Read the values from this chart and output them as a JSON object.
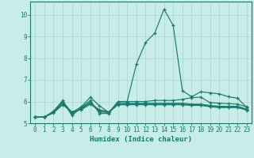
{
  "xlabel": "Humidex (Indice chaleur)",
  "xlim": [
    -0.5,
    23.5
  ],
  "ylim": [
    5.0,
    10.6
  ],
  "yticks": [
    5,
    6,
    7,
    8,
    9,
    10
  ],
  "xticks": [
    0,
    1,
    2,
    3,
    4,
    5,
    6,
    7,
    8,
    9,
    10,
    11,
    12,
    13,
    14,
    15,
    16,
    17,
    18,
    19,
    20,
    21,
    22,
    23
  ],
  "bg_color": "#c8ece8",
  "line_color": "#1a7a6e",
  "grid_color": "#b0d8d4",
  "lines": [
    {
      "x": [
        0,
        1,
        2,
        3,
        4,
        5,
        6,
        7,
        8,
        9,
        10,
        11,
        12,
        13,
        14,
        15,
        16,
        17,
        18,
        19,
        20,
        21,
        22,
        23
      ],
      "y": [
        5.28,
        5.28,
        5.55,
        6.05,
        5.35,
        5.72,
        6.05,
        5.45,
        5.45,
        5.97,
        6.0,
        7.72,
        8.72,
        9.15,
        10.25,
        9.5,
        6.5,
        6.22,
        6.45,
        6.4,
        6.35,
        6.22,
        6.15,
        5.72
      ]
    },
    {
      "x": [
        0,
        1,
        2,
        3,
        4,
        5,
        6,
        7,
        8,
        9,
        10,
        11,
        12,
        13,
        14,
        15,
        16,
        17,
        18,
        19,
        20,
        21,
        22,
        23
      ],
      "y": [
        5.28,
        5.28,
        5.55,
        6.0,
        5.5,
        5.75,
        6.2,
        5.8,
        5.5,
        6.0,
        6.0,
        6.0,
        6.0,
        6.05,
        6.05,
        6.05,
        6.1,
        6.18,
        6.2,
        5.95,
        5.92,
        5.9,
        5.88,
        5.75
      ]
    },
    {
      "x": [
        0,
        1,
        2,
        3,
        4,
        5,
        6,
        7,
        8,
        9,
        10,
        11,
        12,
        13,
        14,
        15,
        16,
        17,
        18,
        19,
        20,
        21,
        22,
        23
      ],
      "y": [
        5.28,
        5.28,
        5.52,
        5.95,
        5.42,
        5.68,
        5.98,
        5.52,
        5.5,
        5.9,
        5.92,
        5.92,
        5.92,
        5.92,
        5.92,
        5.92,
        5.92,
        5.88,
        5.88,
        5.82,
        5.78,
        5.78,
        5.78,
        5.65
      ]
    },
    {
      "x": [
        0,
        1,
        2,
        3,
        4,
        5,
        6,
        7,
        8,
        9,
        10,
        11,
        12,
        13,
        14,
        15,
        16,
        17,
        18,
        19,
        20,
        21,
        22,
        23
      ],
      "y": [
        5.28,
        5.28,
        5.5,
        5.88,
        5.5,
        5.65,
        5.92,
        5.62,
        5.52,
        5.88,
        5.88,
        5.88,
        5.88,
        5.88,
        5.88,
        5.88,
        5.88,
        5.85,
        5.85,
        5.78,
        5.75,
        5.75,
        5.75,
        5.62
      ]
    },
    {
      "x": [
        0,
        1,
        2,
        3,
        4,
        5,
        6,
        7,
        8,
        9,
        10,
        11,
        12,
        13,
        14,
        15,
        16,
        17,
        18,
        19,
        20,
        21,
        22,
        23
      ],
      "y": [
        5.28,
        5.28,
        5.48,
        5.85,
        5.52,
        5.62,
        5.88,
        5.58,
        5.5,
        5.85,
        5.85,
        5.85,
        5.85,
        5.85,
        5.85,
        5.85,
        5.85,
        5.82,
        5.82,
        5.76,
        5.72,
        5.72,
        5.72,
        5.6
      ]
    }
  ]
}
